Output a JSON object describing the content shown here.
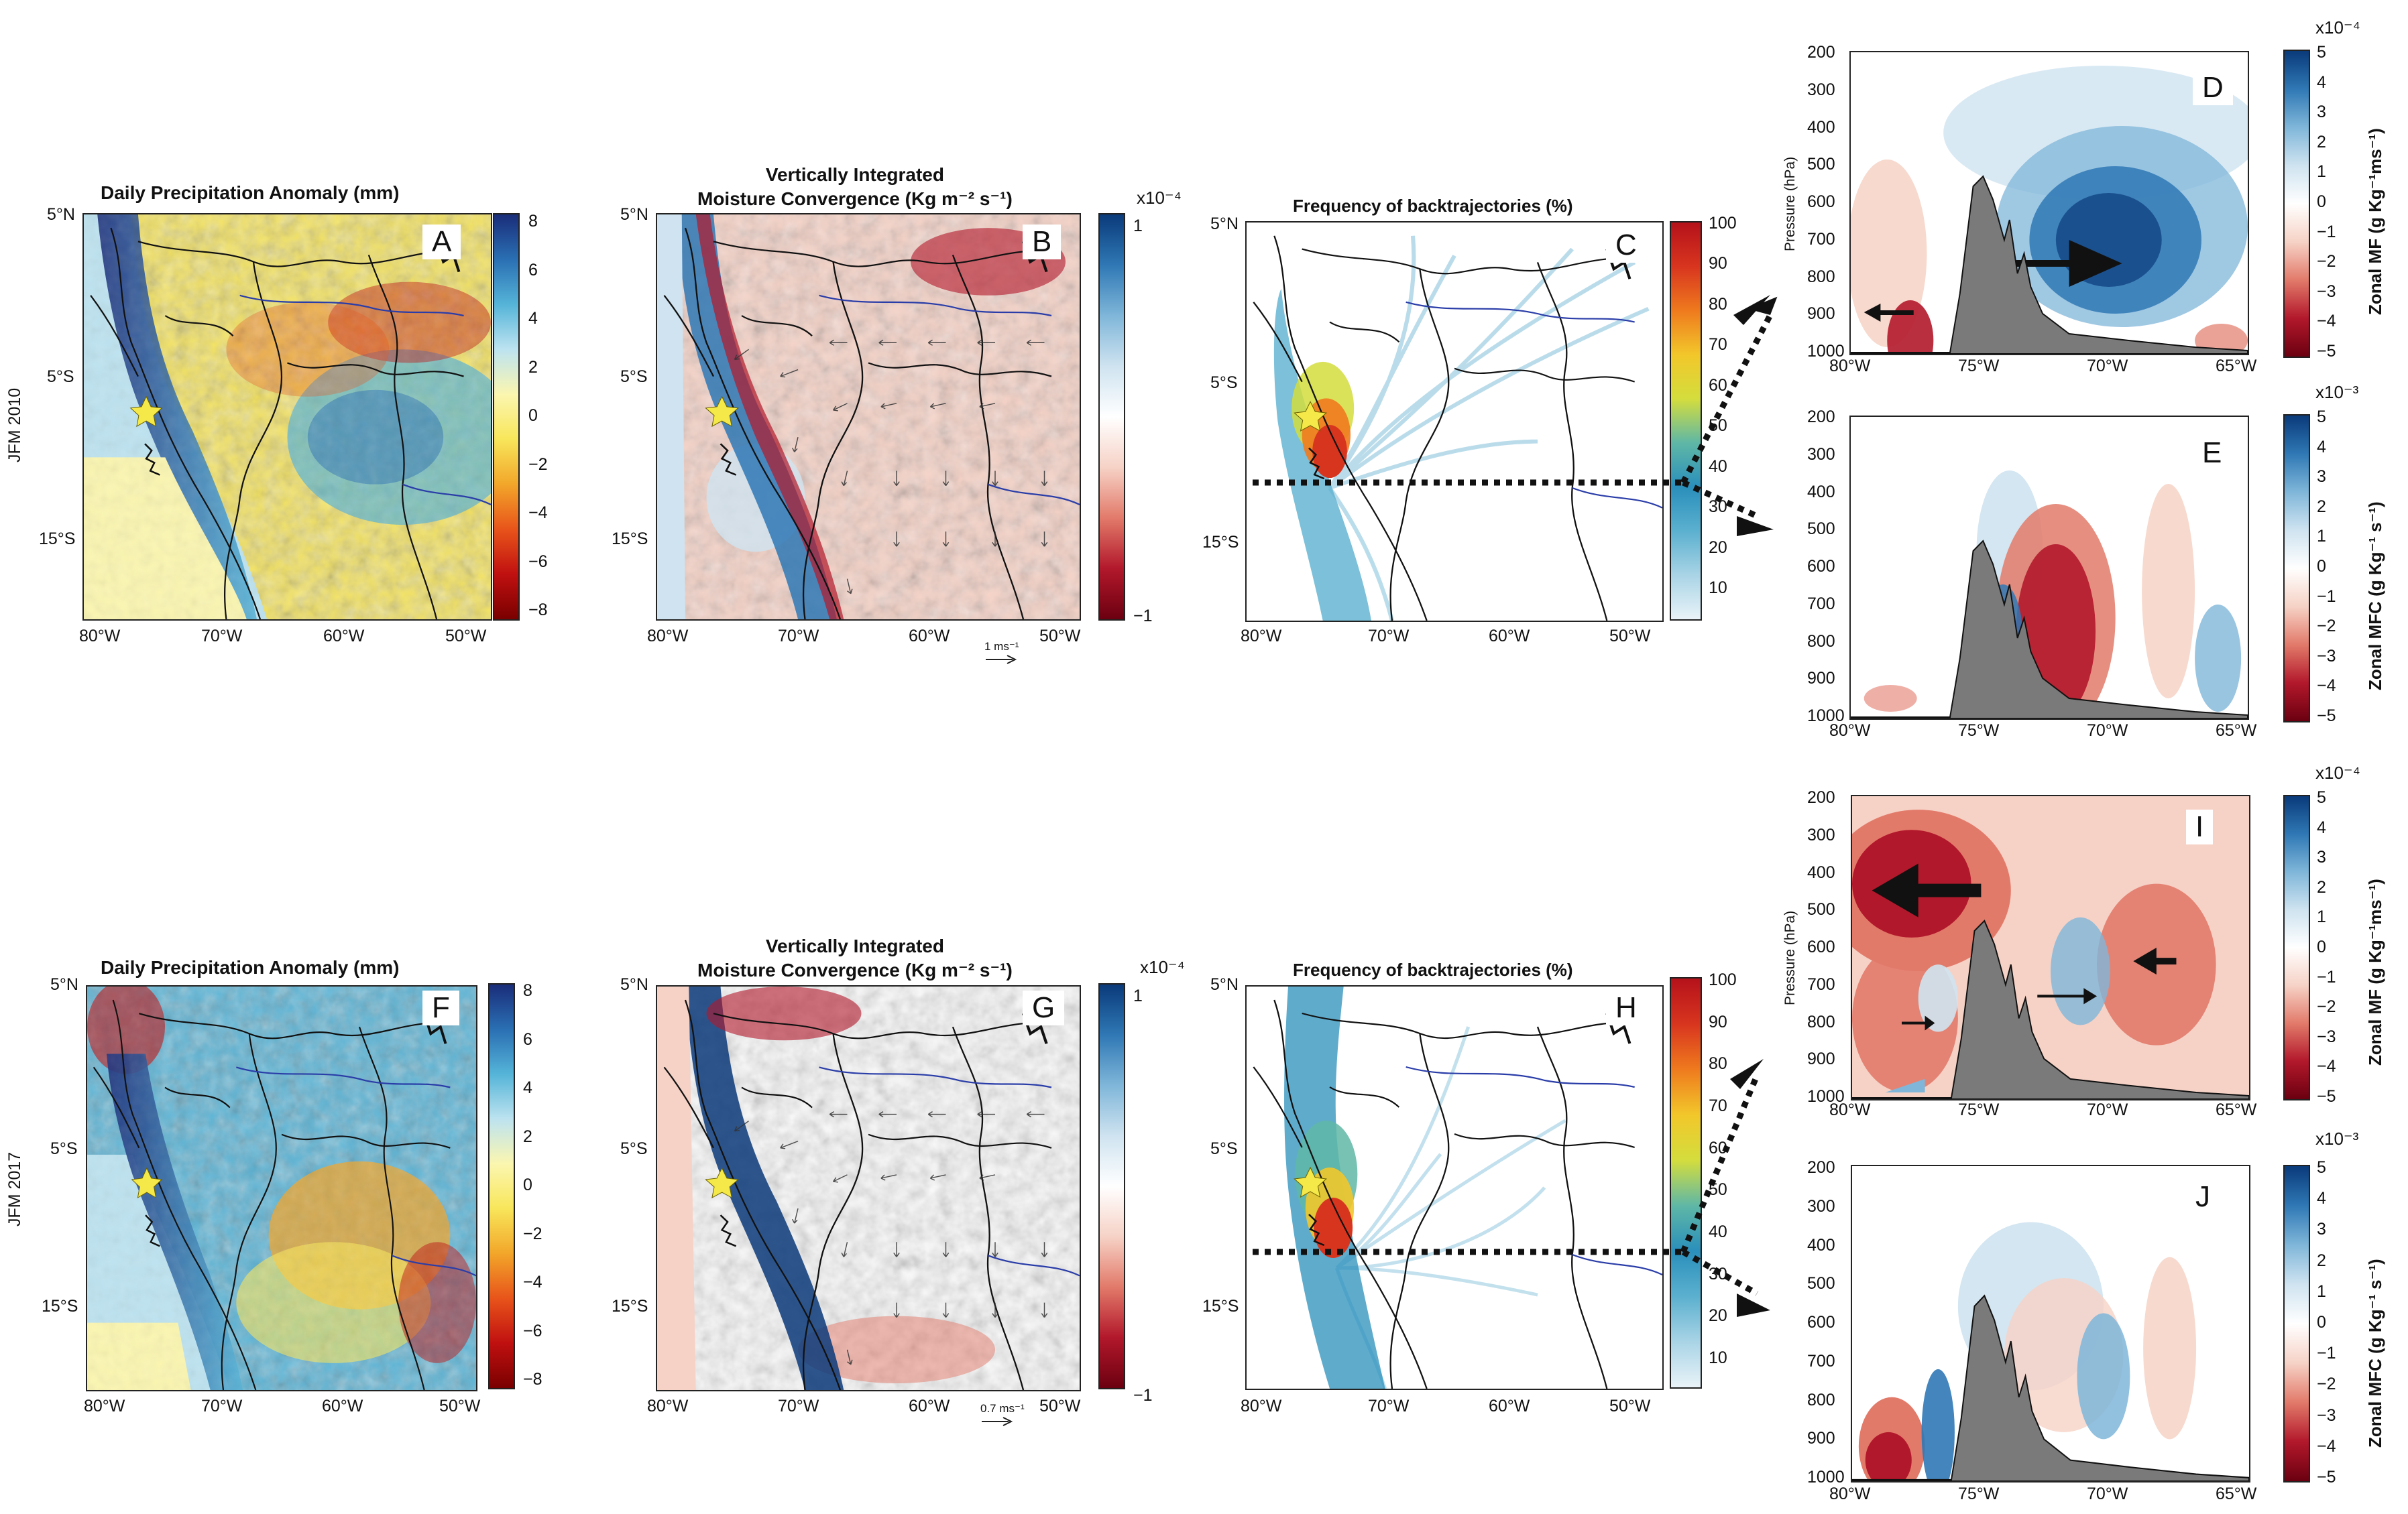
{
  "rows": [
    {
      "row_label": "JFM 2010",
      "precip": {
        "title": "Daily Precipitation Anomaly (mm)",
        "letter": "A"
      },
      "mfc": {
        "title_line1": "Vertically Integrated",
        "title_line2": "Moisture Convergence (Kg m⁻² s⁻¹)",
        "letter": "B",
        "scale_exponent": "x10⁻⁴",
        "vector_ref": "1 ms⁻¹"
      },
      "traj": {
        "title": "Frequency of backtrajectories (%)",
        "letter": "C"
      },
      "xs_top": {
        "letter": "D",
        "colorbar_label": "Zonal MF (g Kg⁻¹ms⁻¹)",
        "exponent": "x10⁻⁴"
      },
      "xs_bottom": {
        "letter": "E",
        "colorbar_label": "Zonal MFC (g Kg⁻¹ s⁻¹)",
        "exponent": "x10⁻³"
      }
    },
    {
      "row_label": "JFM 2017",
      "precip": {
        "title": "Daily Precipitation Anomaly (mm)",
        "letter": "F"
      },
      "mfc": {
        "title_line1": "Vertically Integrated",
        "title_line2": "Moisture Convergence (Kg m⁻² s⁻¹)",
        "letter": "G",
        "scale_exponent": "x10⁻⁴",
        "vector_ref": "0.7 ms⁻¹"
      },
      "traj": {
        "title": "Frequency of backtrajectories (%)",
        "letter": "H"
      },
      "xs_top": {
        "letter": "I",
        "colorbar_label": "Zonal MF (g Kg⁻¹ms⁻¹)",
        "exponent": "x10⁻⁴"
      },
      "xs_bottom": {
        "letter": "J",
        "colorbar_label": "Zonal MFC (g Kg⁻¹ s⁻¹)",
        "exponent": "x10⁻³"
      }
    }
  ],
  "map_axes": {
    "lat_ticks": [
      "5°N",
      "5°S",
      "15°S"
    ],
    "lon_ticks": [
      "80°W",
      "70°W",
      "60°W",
      "50°W"
    ]
  },
  "xsection_axes": {
    "ylabel": "Pressure (hPa)",
    "pressure_ticks": [
      "200",
      "300",
      "400",
      "500",
      "600",
      "700",
      "800",
      "900",
      "1000"
    ],
    "lon_ticks": [
      "80°W",
      "75°W",
      "70°W",
      "65°W"
    ]
  },
  "colorbars": {
    "precip_ticks": [
      "8",
      "6",
      "4",
      "2",
      "0",
      "−2",
      "−4",
      "−6",
      "−8"
    ],
    "mfc_ticks": [
      "1",
      "−1"
    ],
    "traj_ticks": [
      "100",
      "90",
      "80",
      "70",
      "60",
      "50",
      "40",
      "30",
      "20",
      "10"
    ],
    "xs_ticks": [
      "5",
      "4",
      "3",
      "2",
      "1",
      "0",
      "−1",
      "−2",
      "−3",
      "−4",
      "−5"
    ]
  },
  "colors": {
    "precip_scale": [
      "#7a0000",
      "#c01010",
      "#e8541a",
      "#f2a62a",
      "#f8e65a",
      "#fbf6b0",
      "#bde3f0",
      "#55b4d8",
      "#2a6fb3",
      "#1a2d7a"
    ],
    "diverging_scale": [
      "#6b0010",
      "#b2182b",
      "#e27a6a",
      "#f6d2c6",
      "#ffffff",
      "#cfe3f0",
      "#7fb6d9",
      "#2f78b5",
      "#0a3a7a"
    ],
    "traj_scale": [
      "#e9f3f8",
      "#a9d4e6",
      "#5bb0cf",
      "#2a8fbb",
      "#5fb7a6",
      "#d4dd3d",
      "#f2c72b",
      "#ef7a1e",
      "#d8351f",
      "#b5121b"
    ],
    "terrain": "#7a7a7a",
    "star": "#f5e94a"
  }
}
